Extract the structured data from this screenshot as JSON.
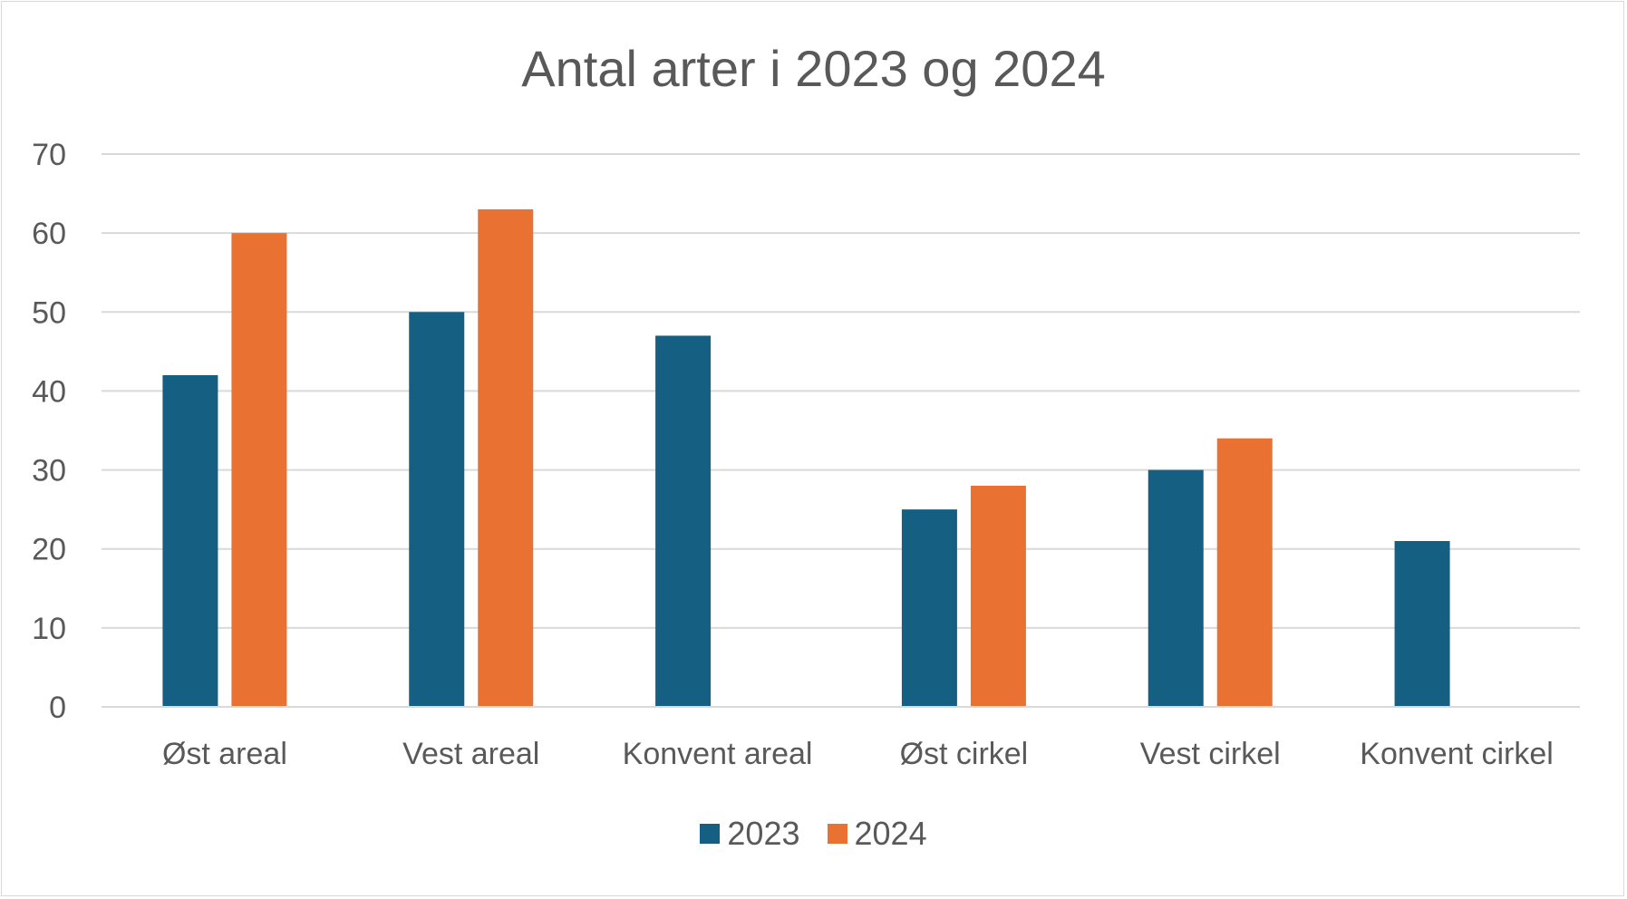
{
  "chart_data": {
    "type": "bar",
    "title": "Antal arter i 2023 og 2024",
    "xlabel": "",
    "ylabel": "",
    "categories": [
      "Øst areal",
      "Vest areal",
      "Konvent areal",
      "Øst cirkel",
      "Vest cirkel",
      "Konvent cirkel"
    ],
    "series": [
      {
        "name": "2023",
        "color": "#156082",
        "values": [
          42,
          50,
          47,
          25,
          30,
          21
        ]
      },
      {
        "name": "2024",
        "color": "#e97132",
        "values": [
          60,
          63,
          null,
          28,
          34,
          null
        ]
      }
    ],
    "ylim": [
      0,
      70
    ],
    "yticks": [
      0,
      10,
      20,
      30,
      40,
      50,
      60,
      70
    ],
    "grid": true,
    "legend_position": "bottom"
  }
}
